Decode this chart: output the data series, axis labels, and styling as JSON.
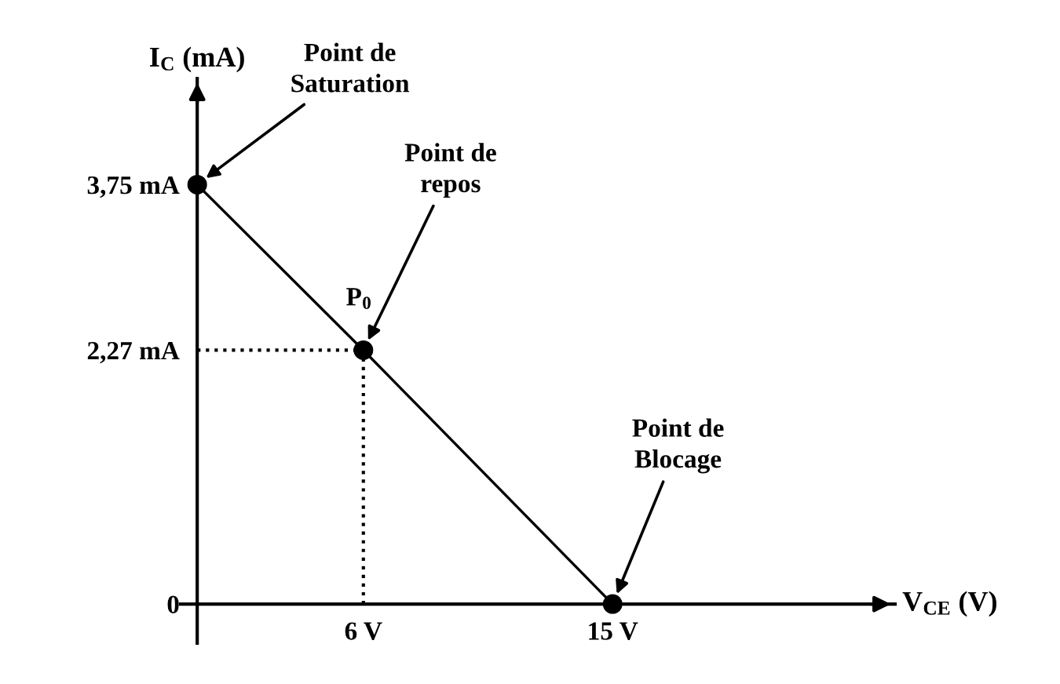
{
  "chart_data": {
    "type": "line",
    "xlabel": "V$_{CE}$ (V)",
    "ylabel": "I$_{C}$ (mA)",
    "series": [
      {
        "color": "#000000",
        "x": [
          0,
          6,
          15
        ],
        "values": [
          3.75,
          2.27,
          0
        ],
        "marker": "circle",
        "line_style": "solid"
      },
      {
        "color": "#000000",
        "x": [
          0,
          6
        ],
        "values": [
          2.27,
          2.27
        ],
        "marker": "none",
        "line_style": "dotted"
      },
      {
        "color": "#000000",
        "x": [
          6,
          6
        ],
        "values": [
          0,
          2.27
        ],
        "marker": "none",
        "line_style": "dotted"
      }
    ],
    "xlim": [
      -0.6,
      25.2
    ],
    "ylim": [
      -0.35,
      4.7
    ],
    "xticks": [
      {
        "value": 6,
        "label": "6 V"
      },
      {
        "value": 15,
        "label": "15 V"
      }
    ],
    "yticks": [
      {
        "value": 0,
        "label": "0"
      },
      {
        "value": 2.27,
        "label": "2,27 mA"
      },
      {
        "value": 3.75,
        "label": "3,75 mA"
      }
    ],
    "grid": false,
    "legend": false,
    "annotations": [
      {
        "text": "Point de\nSaturation",
        "x": 0,
        "y": 3.75
      },
      {
        "text": "Point de\nrepos",
        "x": 6,
        "y": 2.27
      },
      {
        "text": "P$_{0}$",
        "x": 6,
        "y": 2.27
      },
      {
        "text": "Point de\nBlocage",
        "x": 15,
        "y": 0
      }
    ]
  }
}
